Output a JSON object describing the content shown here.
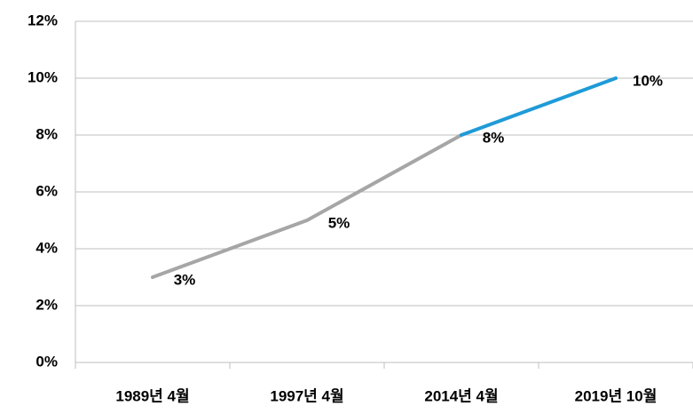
{
  "chart_data": {
    "type": "line",
    "categories": [
      "1989년 4월",
      "1997년 4월",
      "2014년 4월",
      "2019년 10월"
    ],
    "values": [
      3,
      5,
      8,
      10
    ],
    "value_labels": [
      "3%",
      "5%",
      "8%",
      "10%"
    ],
    "segment_colors": [
      "#a6a6a6",
      "#a6a6a6",
      "#1f9bd7"
    ],
    "ylim": [
      0,
      12
    ],
    "yticks": [
      {
        "value": 0,
        "label": "0%"
      },
      {
        "value": 2,
        "label": "2%"
      },
      {
        "value": 4,
        "label": "4%"
      },
      {
        "value": 6,
        "label": "6%"
      },
      {
        "value": 8,
        "label": "8%"
      },
      {
        "value": 10,
        "label": "10%"
      },
      {
        "value": 12,
        "label": "12%"
      }
    ],
    "grid": true
  }
}
